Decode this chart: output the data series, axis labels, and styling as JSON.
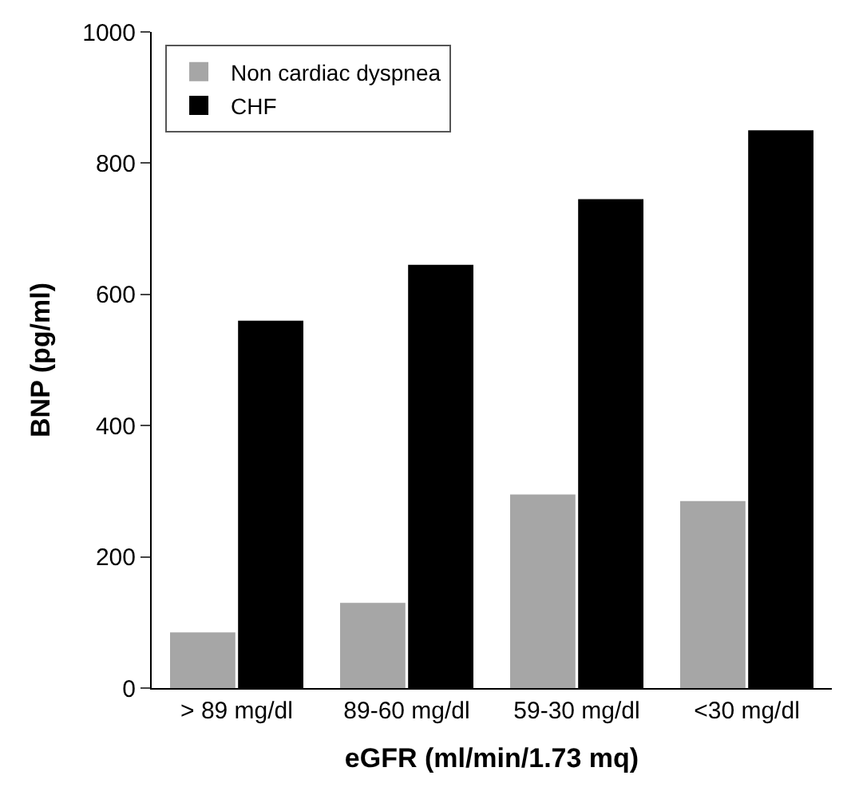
{
  "chart_data": {
    "type": "bar",
    "xlabel": "eGFR (ml/min/1.73 mq)",
    "ylabel": "BNP (pg/ml)",
    "categories": [
      "> 89 mg/dl",
      "89-60 mg/dl",
      "59-30 mg/dl",
      "<30 mg/dl"
    ],
    "series": [
      {
        "name": "Non cardiac dyspnea",
        "color": "#a6a6a6",
        "values": [
          85,
          130,
          295,
          285
        ]
      },
      {
        "name": "CHF",
        "color": "#000000",
        "values": [
          560,
          645,
          745,
          850
        ]
      }
    ],
    "ylim": [
      0,
      1000
    ],
    "yticks": [
      0,
      200,
      400,
      600,
      800,
      1000
    ],
    "legend": "top left"
  }
}
